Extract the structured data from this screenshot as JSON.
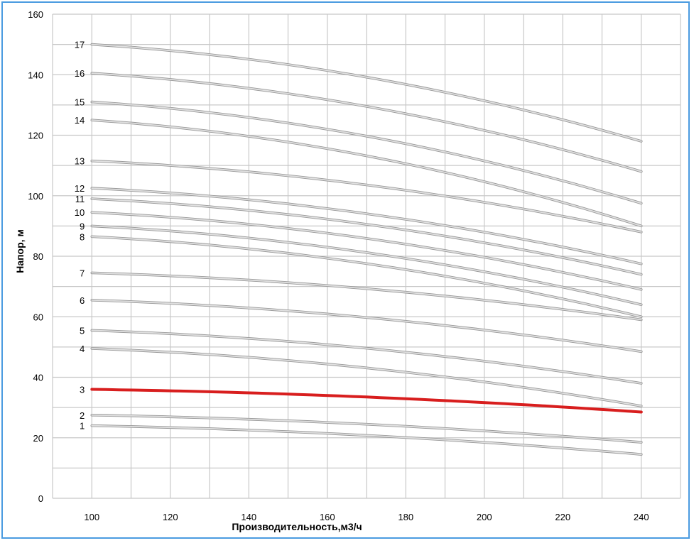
{
  "chart_data": {
    "type": "line",
    "title": "",
    "xlabel": "Производительность,м3/ч",
    "ylabel": "Напор, м",
    "xlim": [
      90,
      250
    ],
    "ylim": [
      0,
      160
    ],
    "grid": true,
    "x_ticks": [
      100,
      120,
      140,
      160,
      180,
      200,
      220,
      240
    ],
    "y_ticks": [
      0,
      20,
      40,
      60,
      80,
      100,
      120,
      140,
      160
    ],
    "x_tick_labels": [
      "100",
      "120",
      "140",
      "160",
      "180",
      "200",
      "220",
      "240"
    ],
    "y_tick_labels": [
      "0",
      "20",
      "40",
      "60",
      "80",
      "100",
      "120",
      "140",
      "160"
    ],
    "x": [
      100,
      240
    ],
    "series": [
      {
        "name": "1",
        "values": [
          24,
          14.5
        ],
        "highlight": false
      },
      {
        "name": "2",
        "values": [
          27.5,
          18.5
        ],
        "highlight": false
      },
      {
        "name": "3",
        "values": [
          36,
          28.5
        ],
        "highlight": true
      },
      {
        "name": "4",
        "values": [
          49.5,
          30.5
        ],
        "highlight": false
      },
      {
        "name": "5",
        "values": [
          55.5,
          38
        ],
        "highlight": false
      },
      {
        "name": "6",
        "values": [
          65.5,
          48.5
        ],
        "highlight": false
      },
      {
        "name": "7",
        "values": [
          74.5,
          59
        ],
        "highlight": false
      },
      {
        "name": "8",
        "values": [
          86.5,
          60
        ],
        "highlight": false
      },
      {
        "name": "9",
        "values": [
          90,
          64
        ],
        "highlight": false
      },
      {
        "name": "10",
        "values": [
          94.5,
          69
        ],
        "highlight": false
      },
      {
        "name": "11",
        "values": [
          99,
          74
        ],
        "highlight": false
      },
      {
        "name": "12",
        "values": [
          102.5,
          77.5
        ],
        "highlight": false
      },
      {
        "name": "13",
        "values": [
          111.5,
          88
        ],
        "highlight": false
      },
      {
        "name": "14",
        "values": [
          125,
          90
        ],
        "highlight": false
      },
      {
        "name": "15",
        "values": [
          131,
          97.5
        ],
        "highlight": false
      },
      {
        "name": "16",
        "values": [
          140.5,
          108
        ],
        "highlight": false
      },
      {
        "name": "17",
        "values": [
          150,
          118
        ],
        "highlight": false
      }
    ],
    "colors": {
      "highlight": "#d81e1e",
      "normal": "#e0e0e0",
      "normal_edge": "#9a9a9a",
      "frame": "#4a9be0"
    }
  }
}
